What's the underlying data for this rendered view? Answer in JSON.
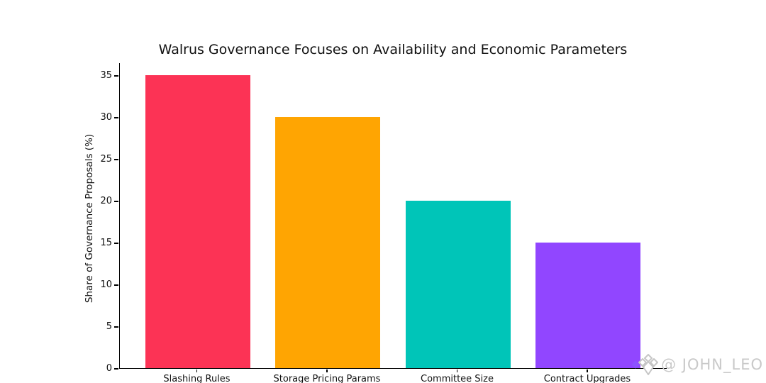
{
  "chart_data": {
    "type": "bar",
    "title": "Walrus Governance Focuses on Availability and Economic Parameters",
    "xlabel": "",
    "ylabel": "Share of Governance Proposals (%)",
    "categories": [
      "Slashing Rules",
      "Storage Pricing Params",
      "Committee Size",
      "Contract Upgrades"
    ],
    "values": [
      35,
      30,
      20,
      15
    ],
    "bar_colors": [
      "#FC3355",
      "#FFA502",
      "#00C5B8",
      "#9146FF"
    ],
    "yticks": [
      0,
      5,
      10,
      15,
      20,
      25,
      30,
      35
    ],
    "ylim": [
      0,
      36.5
    ],
    "grid": false,
    "legend": null,
    "background_color": "#ffffff",
    "text_color": "#111111"
  },
  "watermark": {
    "text": "@ JOHN_LEO",
    "icon": "gem-diamond-icon",
    "text_color": "#c9c9c9",
    "icon_outline_color": "#c6c6c6",
    "icon_accent_color": "#8c52ff"
  }
}
